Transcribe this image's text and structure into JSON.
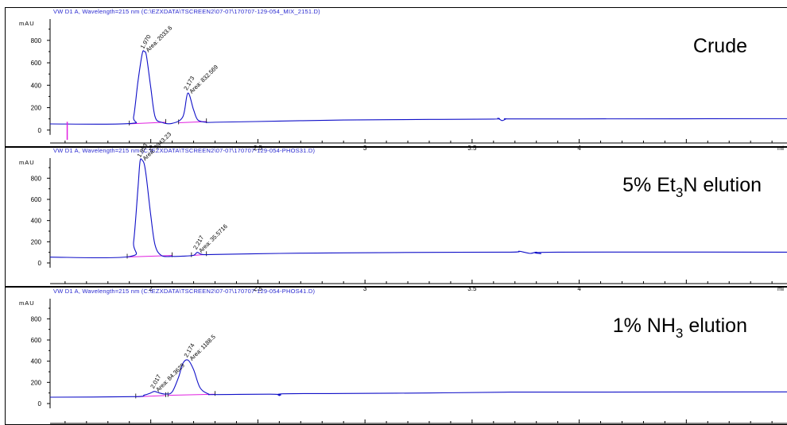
{
  "figure": {
    "colors": {
      "trace": "#1010c8",
      "baseline": "#e020e0",
      "header_text": "#2a2ad0",
      "axis": "#000000"
    }
  },
  "chart_data": [
    {
      "type": "line",
      "header": "VW D1 A, Wavelength=215 nm (C:\\EZXDATA\\TSCREEN2\\07-07\\170707-129-054_MIX_2151.D)",
      "label": "Crude",
      "label_sub": "",
      "label_tail": "",
      "ylabel": "mAU",
      "xlabel": "mi",
      "xlim": [
        1.53,
        4.97
      ],
      "ylim": [
        -30,
        990
      ],
      "x_ticks": [
        "2",
        "2.5",
        "3",
        "3.5",
        "4"
      ],
      "y_ticks": [
        "0",
        "200",
        "400",
        "600",
        "800"
      ],
      "x": [
        1.53,
        1.9,
        1.92,
        1.94,
        1.96,
        1.97,
        1.98,
        2.0,
        2.02,
        2.05,
        2.1,
        2.15,
        2.173,
        2.2,
        2.22,
        2.26,
        2.3,
        2.6,
        2.9,
        3.3,
        3.6,
        3.62,
        3.64,
        3.66,
        3.68,
        4.0,
        4.97
      ],
      "y": [
        55,
        58,
        120,
        430,
        680,
        700,
        660,
        380,
        120,
        70,
        60,
        120,
        330,
        180,
        90,
        70,
        70,
        80,
        90,
        95,
        98,
        105,
        85,
        100,
        100,
        100,
        102
      ],
      "peaks": [
        {
          "rt": "1.970",
          "area": "Area: 2033.6",
          "x": 1.97,
          "y": 700
        },
        {
          "rt": "2.173",
          "area": "Area: 832.569",
          "x": 2.173,
          "y": 330
        }
      ],
      "integration_baselines": [
        {
          "x": [
            1.9,
            2.07
          ],
          "y": [
            56,
            70
          ]
        },
        {
          "x": [
            2.13,
            2.26
          ],
          "y": [
            66,
            76
          ]
        }
      ],
      "marker_x": 1.61
    },
    {
      "type": "line",
      "header": "VW D1 A, Wavelength=215 nm (C:\\EZXDATA\\TSCREEN2\\07-07\\170707-129-054-PHOS31.D)",
      "label": "5% Et",
      "label_sub": "3",
      "label_tail": "N elution",
      "ylabel": "mAU",
      "xlabel": "mi",
      "xlim": [
        1.53,
        4.97
      ],
      "ylim": [
        -30,
        990
      ],
      "x_ticks": [
        "2",
        "2.5",
        "3",
        "3.5",
        "4"
      ],
      "y_ticks": [
        "0",
        "200",
        "400",
        "600",
        "800"
      ],
      "x": [
        1.53,
        1.9,
        1.92,
        1.94,
        1.95,
        1.96,
        1.97,
        1.98,
        2.0,
        2.02,
        2.05,
        2.1,
        2.15,
        2.2,
        2.217,
        2.24,
        2.3,
        2.6,
        2.9,
        3.3,
        3.68,
        3.72,
        3.77,
        3.8,
        3.82,
        3.9,
        4.97
      ],
      "y": [
        55,
        60,
        200,
        700,
        960,
        970,
        930,
        800,
        450,
        170,
        70,
        62,
        64,
        72,
        100,
        80,
        80,
        90,
        95,
        100,
        102,
        110,
        90,
        102,
        88,
        102,
        102
      ],
      "peaks": [
        {
          "rt": "1.953",
          "area": "Area: 3943.23",
          "x": 1.955,
          "y": 970
        },
        {
          "rt": "2.217",
          "area": "Area: 35.5716",
          "x": 2.217,
          "y": 100
        }
      ],
      "integration_baselines": [
        {
          "x": [
            1.89,
            2.1
          ],
          "y": [
            56,
            70
          ]
        },
        {
          "x": [
            2.19,
            2.26
          ],
          "y": [
            70,
            80
          ]
        }
      ],
      "marker_x": null
    },
    {
      "type": "line",
      "header": "VW D1 A, Wavelength=215 nm (C:\\EZXDATA\\TSCREEN2\\07-07\\170707-129-054-PHOS41.D)",
      "label": "1% NH",
      "label_sub": "3",
      "label_tail": " elution",
      "ylabel": "mAU",
      "xlabel": "mi",
      "xlim": [
        1.53,
        4.97
      ],
      "ylim": [
        -30,
        990
      ],
      "x_ticks": [
        "2",
        "2.5",
        "3",
        "3.5",
        "4"
      ],
      "y_ticks": [
        "0",
        "200",
        "400",
        "600",
        "800"
      ],
      "x": [
        1.53,
        1.92,
        1.97,
        2.0,
        2.017,
        2.04,
        2.07,
        2.1,
        2.13,
        2.15,
        2.174,
        2.2,
        2.23,
        2.27,
        2.3,
        2.58,
        2.6,
        2.62,
        2.9,
        3.3,
        3.68,
        4.0,
        4.97
      ],
      "y": [
        60,
        65,
        80,
        100,
        115,
        100,
        90,
        110,
        250,
        380,
        410,
        320,
        150,
        90,
        85,
        88,
        75,
        92,
        95,
        100,
        108,
        108,
        110
      ],
      "peaks": [
        {
          "rt": "2.017",
          "area": "Area: 84.3629",
          "x": 2.017,
          "y": 115
        },
        {
          "rt": "2.174",
          "area": "Area: 1188.5",
          "x": 2.174,
          "y": 410
        }
      ],
      "integration_baselines": [
        {
          "x": [
            1.93,
            2.07
          ],
          "y": [
            64,
            76
          ]
        },
        {
          "x": [
            2.08,
            2.3
          ],
          "y": [
            78,
            88
          ]
        }
      ],
      "marker_x": null
    }
  ]
}
